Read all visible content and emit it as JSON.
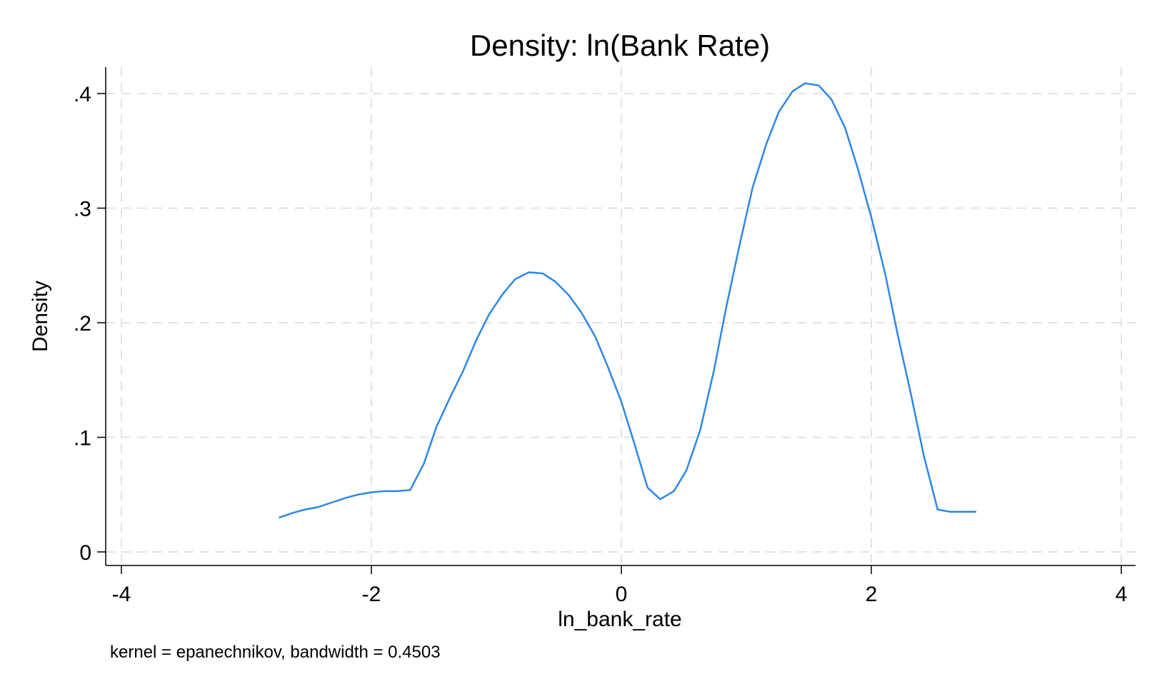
{
  "chart_data": {
    "type": "line",
    "title": "Density: ln(Bank Rate)",
    "xlabel": "ln_bank_rate",
    "ylabel": "Density",
    "note": "kernel = epanechnikov, bandwidth = 0.4503",
    "xlim": [
      -4,
      4
    ],
    "ylim": [
      0,
      0.41
    ],
    "xticks": [
      {
        "value": -4,
        "label": "-4"
      },
      {
        "value": -2,
        "label": "-2"
      },
      {
        "value": 0,
        "label": "0"
      },
      {
        "value": 2,
        "label": "2"
      },
      {
        "value": 4,
        "label": "4"
      }
    ],
    "yticks": [
      {
        "value": 0,
        "label": "0"
      },
      {
        "value": 0.1,
        "label": ".1"
      },
      {
        "value": 0.2,
        "label": ".2"
      },
      {
        "value": 0.3,
        "label": ".3"
      },
      {
        "value": 0.4,
        "label": ".4"
      }
    ],
    "grid": true,
    "line_color": "#2d87e8",
    "series": [
      {
        "x": [
          -2.74,
          -2.63,
          -2.53,
          -2.43,
          -2.32,
          -2.21,
          -2.11,
          -2.0,
          -1.9,
          -1.79,
          -1.69,
          -1.58,
          -1.48,
          -1.37,
          -1.27,
          -1.16,
          -1.06,
          -0.95,
          -0.85,
          -0.74,
          -0.63,
          -0.53,
          -0.42,
          -0.32,
          -0.21,
          -0.11,
          0.0,
          0.1,
          0.21,
          0.31,
          0.42,
          0.52,
          0.63,
          0.74,
          0.84,
          0.95,
          1.05,
          1.16,
          1.26,
          1.37,
          1.47,
          1.58,
          1.68,
          1.79,
          1.89,
          2.0,
          2.11,
          2.21,
          2.32,
          2.42,
          2.53,
          2.63,
          2.74,
          2.84
        ],
        "y": [
          0.03,
          0.034,
          0.037,
          0.039,
          0.043,
          0.047,
          0.05,
          0.052,
          0.053,
          0.053,
          0.054,
          0.077,
          0.109,
          0.135,
          0.157,
          0.185,
          0.207,
          0.225,
          0.238,
          0.244,
          0.243,
          0.236,
          0.224,
          0.209,
          0.188,
          0.162,
          0.131,
          0.096,
          0.056,
          0.046,
          0.053,
          0.071,
          0.106,
          0.158,
          0.214,
          0.27,
          0.318,
          0.356,
          0.384,
          0.402,
          0.409,
          0.407,
          0.395,
          0.37,
          0.335,
          0.292,
          0.243,
          0.19,
          0.136,
          0.084,
          0.037,
          0.035,
          0.035,
          0.035
        ]
      }
    ]
  }
}
